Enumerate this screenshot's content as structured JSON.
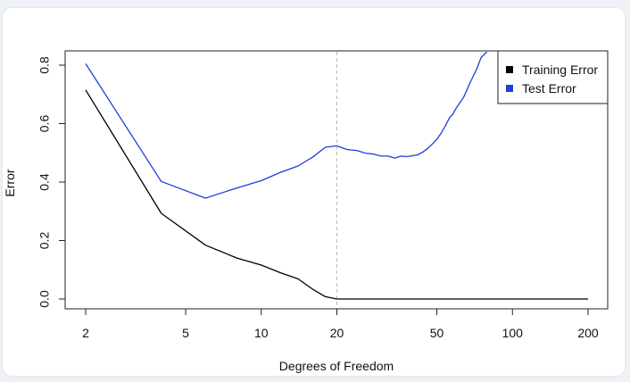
{
  "chart_data": {
    "type": "line",
    "xlabel": "Degrees of Freedom",
    "ylabel": "Error",
    "x_scale": "log",
    "xlim": [
      2,
      200
    ],
    "ylim": [
      0,
      0.8
    ],
    "x_ticks": [
      2,
      5,
      10,
      20,
      50,
      100,
      200
    ],
    "x_tick_labels": [
      "2",
      "5",
      "10",
      "20",
      "50",
      "100",
      "200"
    ],
    "y_ticks": [
      0.0,
      0.2,
      0.4,
      0.6,
      0.8
    ],
    "y_tick_labels": [
      "0.0",
      "0.2",
      "0.4",
      "0.6",
      "0.8"
    ],
    "reference_line": {
      "x": 20,
      "style": "dashed",
      "color": "#bbbbbb"
    },
    "legend": {
      "placement": "top-right"
    },
    "series": [
      {
        "name": "Training Error",
        "color": "#000000",
        "points": [
          [
            2,
            0.715
          ],
          [
            4,
            0.293
          ],
          [
            6,
            0.184
          ],
          [
            8,
            0.14
          ],
          [
            10,
            0.116
          ],
          [
            12,
            0.089
          ],
          [
            14,
            0.069
          ],
          [
            16,
            0.034
          ],
          [
            18,
            0.008
          ],
          [
            20,
            0.0
          ],
          [
            30,
            0.0
          ],
          [
            50,
            0.0
          ],
          [
            100,
            0.0
          ],
          [
            200,
            0.0
          ]
        ]
      },
      {
        "name": "Test Error",
        "color": "#1f3fd6",
        "points": [
          [
            2,
            0.805
          ],
          [
            4,
            0.402
          ],
          [
            6,
            0.345
          ],
          [
            8,
            0.38
          ],
          [
            10,
            0.405
          ],
          [
            12,
            0.434
          ],
          [
            14,
            0.455
          ],
          [
            16,
            0.485
          ],
          [
            18,
            0.519
          ],
          [
            20,
            0.524
          ],
          [
            22,
            0.511
          ],
          [
            24,
            0.508
          ],
          [
            26,
            0.499
          ],
          [
            28,
            0.496
          ],
          [
            30,
            0.489
          ],
          [
            32,
            0.489
          ],
          [
            34,
            0.482
          ],
          [
            36,
            0.489
          ],
          [
            38,
            0.487
          ],
          [
            40,
            0.49
          ],
          [
            42,
            0.493
          ],
          [
            44,
            0.503
          ],
          [
            46,
            0.515
          ],
          [
            48,
            0.53
          ],
          [
            50,
            0.546
          ],
          [
            52,
            0.567
          ],
          [
            54,
            0.591
          ],
          [
            56,
            0.618
          ],
          [
            58,
            0.634
          ],
          [
            60,
            0.656
          ],
          [
            64,
            0.691
          ],
          [
            68,
            0.742
          ],
          [
            72,
            0.786
          ],
          [
            75,
            0.826
          ],
          [
            80,
            0.85
          ]
        ]
      }
    ]
  }
}
